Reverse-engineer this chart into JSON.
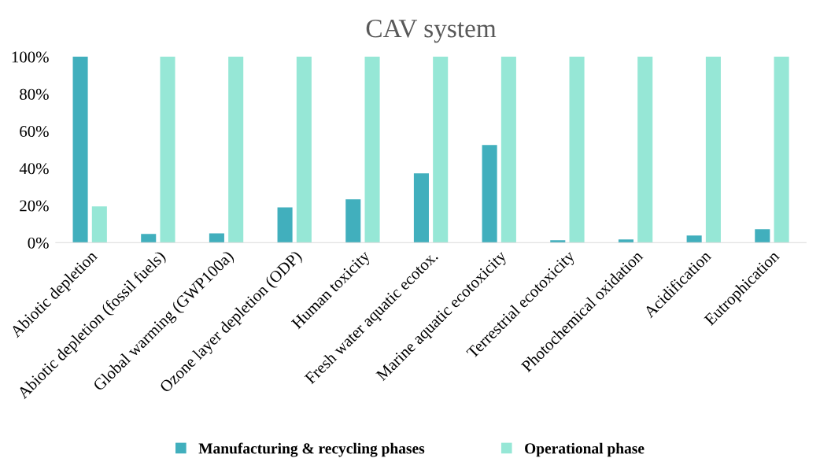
{
  "chart_data": {
    "type": "bar",
    "title": "CAV system",
    "categories": [
      "Abiotic depletion",
      "Abiotic depletion (fossil fuels)",
      "Global warming (GWP100a)",
      "Ozone layer depletion (ODP)",
      "Human toxicity",
      "Fresh water aquatic ecotox.",
      "Marine aquatic ecotoxicity",
      "Terrestrial ecotoxicity",
      "Photochemical oxidation",
      "Acidification",
      "Eutrophication"
    ],
    "series": [
      {
        "name": "Manufacturing & recycling phases",
        "color": "#41afbd",
        "values": [
          100,
          4.7,
          5,
          19,
          23.3,
          37.3,
          52.5,
          1.3,
          1.7,
          3.8,
          7.2
        ]
      },
      {
        "name": "Operational phase",
        "color": "#96e7d6",
        "values": [
          19.5,
          100,
          100,
          100,
          100,
          100,
          100,
          100,
          100,
          100,
          100
        ]
      }
    ],
    "ylim": [
      0,
      100
    ],
    "yticks": [
      {
        "value": 0,
        "label": "0%"
      },
      {
        "value": 20,
        "label": "20%"
      },
      {
        "value": 40,
        "label": "40%"
      },
      {
        "value": 60,
        "label": "60%"
      },
      {
        "value": 80,
        "label": "80%"
      },
      {
        "value": 100,
        "label": "100%"
      }
    ],
    "grid": false,
    "legend": "bottom"
  }
}
